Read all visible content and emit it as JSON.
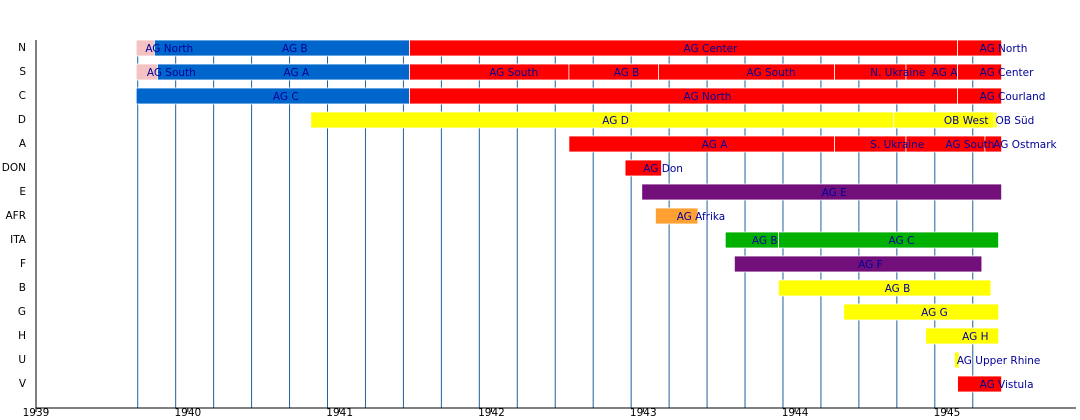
{
  "chart_data": {
    "type": "timeline",
    "xlim": [
      1939,
      1945.85
    ],
    "xticks": [
      1939,
      1940,
      1941,
      1942,
      1943,
      1944,
      1945
    ],
    "xgrid": [
      1939.67,
      1939.92,
      1940.17,
      1940.42,
      1940.67,
      1940.92,
      1941.17,
      1941.42,
      1941.67,
      1941.92,
      1942.17,
      1942.42,
      1942.67,
      1942.92,
      1943.17,
      1943.42,
      1943.67,
      1943.92,
      1944.17,
      1944.42,
      1944.67,
      1944.92,
      1945.17
    ],
    "rows": [
      {
        "name": "N",
        "segments": [
          {
            "start": 1939.66,
            "end": 1939.78,
            "label": "AG North",
            "color": "#f4c2c2"
          },
          {
            "start": 1939.78,
            "end": 1941.46,
            "label": "AG B",
            "color": "#0066cc"
          },
          {
            "start": 1941.46,
            "end": 1945.07,
            "label": "AG Center",
            "color": "#ff0000"
          },
          {
            "start": 1945.07,
            "end": 1945.36,
            "label": "AG North",
            "color": "#ff0000"
          }
        ]
      },
      {
        "name": "S",
        "segments": [
          {
            "start": 1939.66,
            "end": 1939.8,
            "label": "AG South",
            "color": "#f4c2c2"
          },
          {
            "start": 1939.8,
            "end": 1941.46,
            "label": "AG A",
            "color": "#0066cc"
          },
          {
            "start": 1941.46,
            "end": 1942.51,
            "label": "AG South",
            "color": "#ff0000"
          },
          {
            "start": 1942.51,
            "end": 1943.1,
            "label": "AG B",
            "color": "#ff0000"
          },
          {
            "start": 1943.1,
            "end": 1944.26,
            "label": "AG South",
            "color": "#ff0000"
          },
          {
            "start": 1944.26,
            "end": 1944.73,
            "label": "N. Ukraine",
            "color": "#ff0000"
          },
          {
            "start": 1944.73,
            "end": 1945.07,
            "label": "AG A",
            "color": "#ff0000"
          },
          {
            "start": 1945.07,
            "end": 1945.36,
            "label": "AG Center",
            "color": "#ff0000"
          }
        ]
      },
      {
        "name": "C",
        "segments": [
          {
            "start": 1939.66,
            "end": 1941.46,
            "label": "AG C",
            "color": "#0066cc"
          },
          {
            "start": 1941.46,
            "end": 1945.07,
            "label": "AG North",
            "color": "#ff0000"
          },
          {
            "start": 1945.07,
            "end": 1945.36,
            "label": "AG Courland",
            "color": "#ff0000"
          }
        ]
      },
      {
        "name": "D",
        "segments": [
          {
            "start": 1940.81,
            "end": 1944.65,
            "label": "AG D",
            "color": "#ffff00"
          },
          {
            "start": 1944.65,
            "end": 1945.31,
            "label": "OB West",
            "color": "#ffff00"
          },
          {
            "start": 1945.31,
            "end": 1945.33,
            "label": "OB Süd",
            "color": "#ffff00"
          }
        ]
      },
      {
        "name": "A",
        "segments": [
          {
            "start": 1942.51,
            "end": 1944.26,
            "label": "AG A",
            "color": "#ff0000"
          },
          {
            "start": 1944.26,
            "end": 1944.73,
            "label": "S. Ukraine",
            "color": "#ff0000"
          },
          {
            "start": 1944.73,
            "end": 1945.25,
            "label": "AG South",
            "color": "#ff0000"
          },
          {
            "start": 1945.25,
            "end": 1945.36,
            "label": "AG Ostmark",
            "color": "#ff0000"
          }
        ]
      },
      {
        "name": "DON",
        "segments": [
          {
            "start": 1942.88,
            "end": 1943.12,
            "label": "AG Don",
            "color": "#ff0000"
          }
        ]
      },
      {
        "name": "E",
        "segments": [
          {
            "start": 1942.99,
            "end": 1945.36,
            "label": "AG E",
            "color": "#730f7a"
          }
        ]
      },
      {
        "name": "AFR",
        "segments": [
          {
            "start": 1943.08,
            "end": 1943.36,
            "label": "AG Afrika",
            "color": "#ffa033"
          }
        ]
      },
      {
        "name": "ITA",
        "segments": [
          {
            "start": 1943.54,
            "end": 1943.89,
            "label": "AG B",
            "color": "#00b000"
          },
          {
            "start": 1943.89,
            "end": 1945.34,
            "label": "AG C",
            "color": "#00b000"
          }
        ]
      },
      {
        "name": "F",
        "segments": [
          {
            "start": 1943.6,
            "end": 1945.23,
            "label": "AG F",
            "color": "#730f7a"
          }
        ]
      },
      {
        "name": "B",
        "segments": [
          {
            "start": 1943.89,
            "end": 1945.29,
            "label": "AG B",
            "color": "#ffff00"
          }
        ]
      },
      {
        "name": "G",
        "segments": [
          {
            "start": 1944.32,
            "end": 1945.34,
            "label": "AG G",
            "color": "#ffff00"
          }
        ]
      },
      {
        "name": "H",
        "segments": [
          {
            "start": 1944.86,
            "end": 1945.34,
            "label": "AG H",
            "color": "#ffff00"
          }
        ]
      },
      {
        "name": "U",
        "segments": [
          {
            "start": 1945.05,
            "end": 1945.08,
            "label": "AG Upper Rhine",
            "color": "#ffff00"
          }
        ]
      },
      {
        "name": "V",
        "segments": [
          {
            "start": 1945.07,
            "end": 1945.36,
            "label": "AG Vistula",
            "color": "#ff0000"
          }
        ]
      }
    ]
  }
}
